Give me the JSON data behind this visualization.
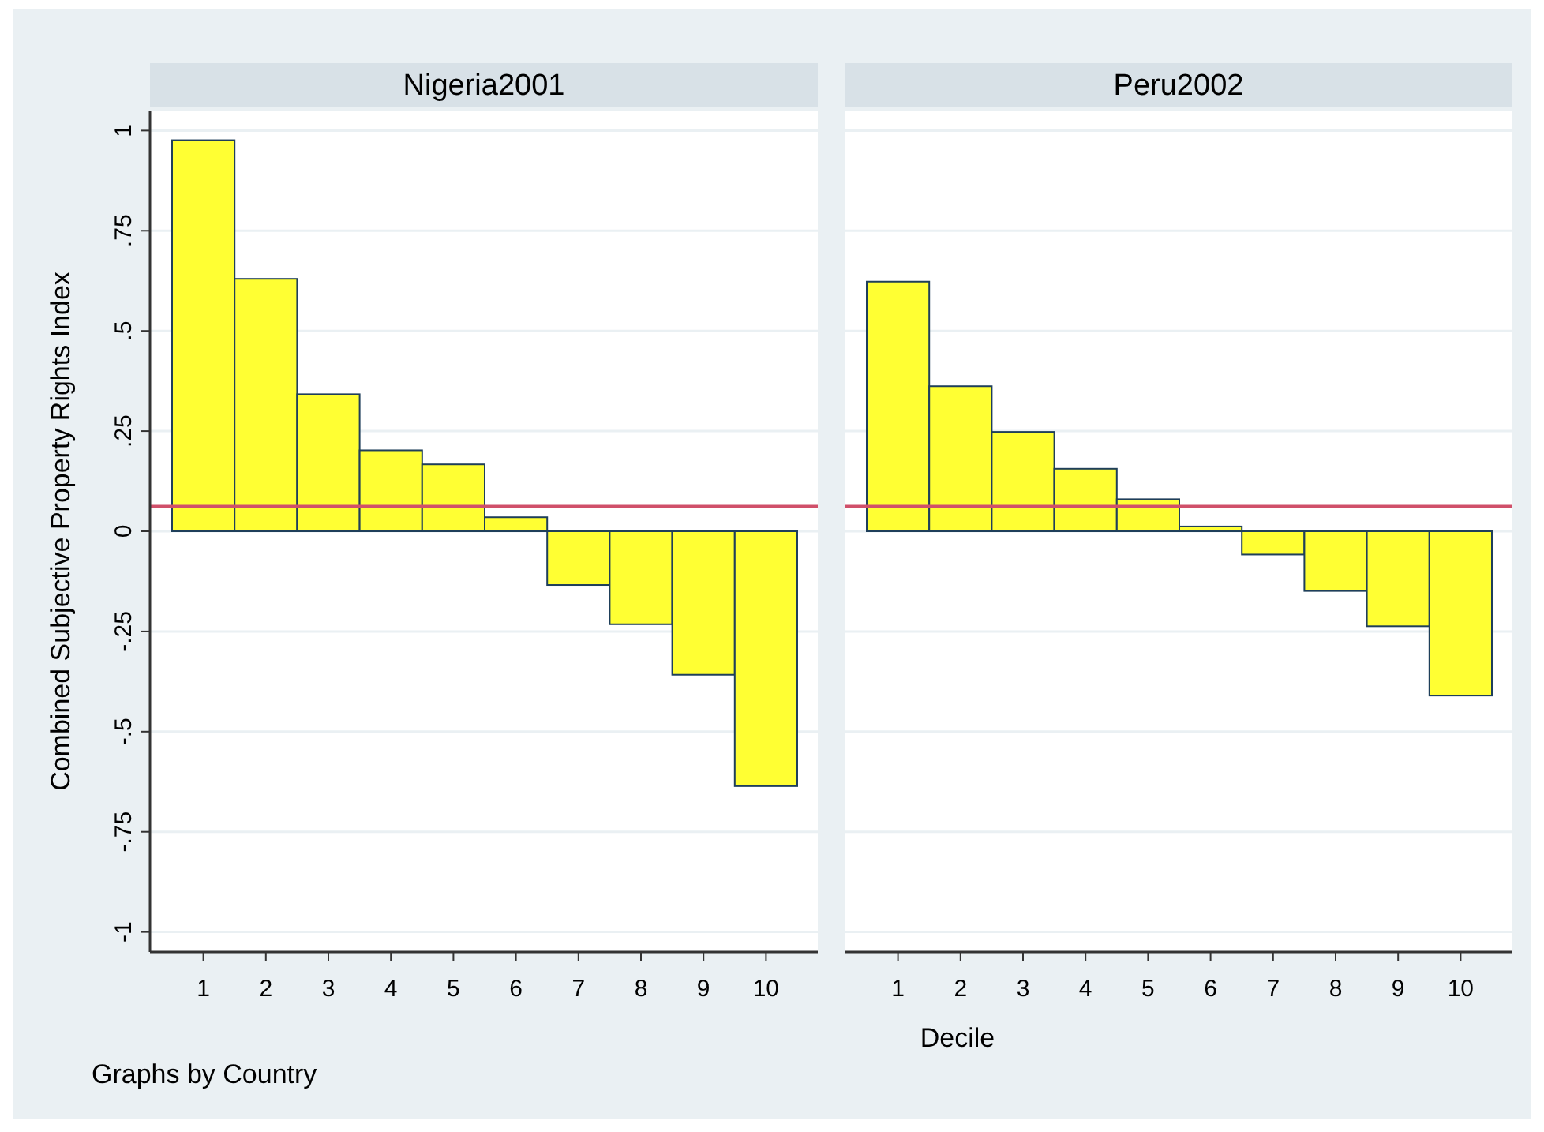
{
  "chart_data": [
    {
      "type": "bar",
      "title": "Nigeria2001",
      "ylabel": "Combined Subjective Property Rights Index",
      "xlabel": "Decile",
      "annotations": [
        "Graphs by Country"
      ],
      "categories": [
        "1",
        "2",
        "3",
        "4",
        "5",
        "6",
        "7",
        "8",
        "9",
        "10"
      ],
      "series": [
        {
          "color": "#ffff33",
          "values": [
            0.976,
            0.63,
            0.342,
            0.202,
            0.167,
            0.035,
            -0.134,
            -0.232,
            -0.358,
            -0.636
          ]
        }
      ],
      "ylim": [
        -1.05,
        1.05
      ],
      "yticks": [
        {
          "value": -1,
          "label": "-1"
        },
        {
          "value": -0.75,
          "label": "-.75"
        },
        {
          "value": -0.5,
          "label": "-.5"
        },
        {
          "value": -0.25,
          "label": "-.25"
        },
        {
          "value": 0,
          "label": "0"
        },
        {
          "value": 0.25,
          "label": ".25"
        },
        {
          "value": 0.5,
          "label": ".5"
        },
        {
          "value": 0.75,
          "label": ".75"
        },
        {
          "value": 1,
          "label": "1"
        }
      ],
      "grid": "y",
      "ref_lines": [
        {
          "axis": "y",
          "value": 0.062,
          "color": "#d0506a"
        }
      ]
    },
    {
      "type": "bar",
      "title": "Peru2002",
      "tick_labels": "x",
      "categories": [
        "1",
        "2",
        "3",
        "4",
        "5",
        "6",
        "7",
        "8",
        "9",
        "10"
      ],
      "series": [
        {
          "color": "#ffff33",
          "values": [
            0.623,
            0.362,
            0.248,
            0.156,
            0.08,
            0.012,
            -0.058,
            -0.149,
            -0.237,
            -0.41
          ]
        }
      ],
      "ylim": [
        -1.05,
        1.05
      ],
      "yticks": [
        {
          "value": -1,
          "label": null
        },
        {
          "value": -0.75,
          "label": null
        },
        {
          "value": -0.5,
          "label": null
        },
        {
          "value": -0.25,
          "label": null
        },
        {
          "value": 0,
          "label": null
        },
        {
          "value": 0.25,
          "label": null
        },
        {
          "value": 0.5,
          "label": null
        },
        {
          "value": 0.75,
          "label": null
        },
        {
          "value": 1,
          "label": null
        }
      ],
      "grid": "y",
      "ref_lines": [
        {
          "axis": "y",
          "value": 0.062,
          "color": "#d0506a"
        }
      ]
    }
  ]
}
